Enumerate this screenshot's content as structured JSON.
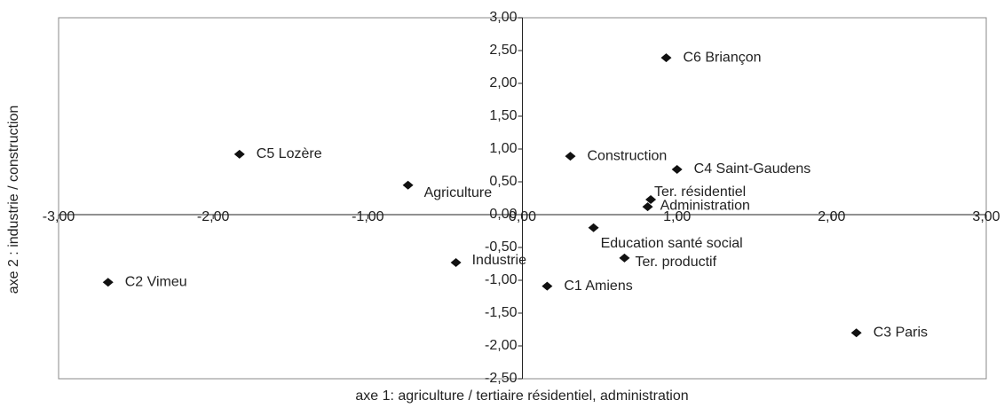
{
  "chart_data": {
    "type": "scatter",
    "xlabel": "axe 1: agriculture / tertiaire résidentiel, administration",
    "ylabel": "axe 2 : industrie / construction",
    "labels": [
      "C6 Briançon",
      "C5 Lozère",
      "Construction",
      "C4 Saint-Gaudens",
      "Agriculture",
      "Ter. résidentiel",
      "Administration",
      "Education santé social",
      "Industrie",
      "Ter. productif",
      "C2 Vimeu",
      "C1 Amiens",
      "C3 Paris"
    ],
    "x": [
      0.93,
      -1.83,
      0.31,
      1.0,
      -0.74,
      0.83,
      0.81,
      0.46,
      -0.43,
      0.66,
      -2.68,
      0.16,
      2.16
    ],
    "values": [
      2.39,
      0.92,
      0.89,
      0.69,
      0.45,
      0.23,
      0.12,
      -0.2,
      -0.73,
      -0.66,
      -1.03,
      -1.09,
      -1.8
    ],
    "color": "#111111",
    "xlim": [
      -3,
      3
    ],
    "ylim": [
      -2.5,
      3
    ],
    "xticks": [
      {
        "value": -3,
        "label": "-3,00"
      },
      {
        "value": -2,
        "label": "-2,00"
      },
      {
        "value": -1,
        "label": "-1,00"
      },
      {
        "value": 0,
        "label": "0,00"
      },
      {
        "value": 1,
        "label": "1,00"
      },
      {
        "value": 2,
        "label": "2,00"
      },
      {
        "value": 3,
        "label": "3,00"
      }
    ],
    "yticks": [
      {
        "value": -2.5,
        "label": "-2,50"
      },
      {
        "value": -2,
        "label": "-2,00"
      },
      {
        "value": -1.5,
        "label": "-1,50"
      },
      {
        "value": -1,
        "label": "-1,00"
      },
      {
        "value": -0.5,
        "label": "-0,50"
      },
      {
        "value": 0,
        "label": "0,00"
      },
      {
        "value": 0.5,
        "label": "0,50"
      },
      {
        "value": 1,
        "label": "1,00"
      },
      {
        "value": 1.5,
        "label": "1,50"
      },
      {
        "value": 2,
        "label": "2,00"
      },
      {
        "value": 2.5,
        "label": "2,50"
      },
      {
        "value": 3,
        "label": "3,00"
      }
    ],
    "grid": false
  }
}
